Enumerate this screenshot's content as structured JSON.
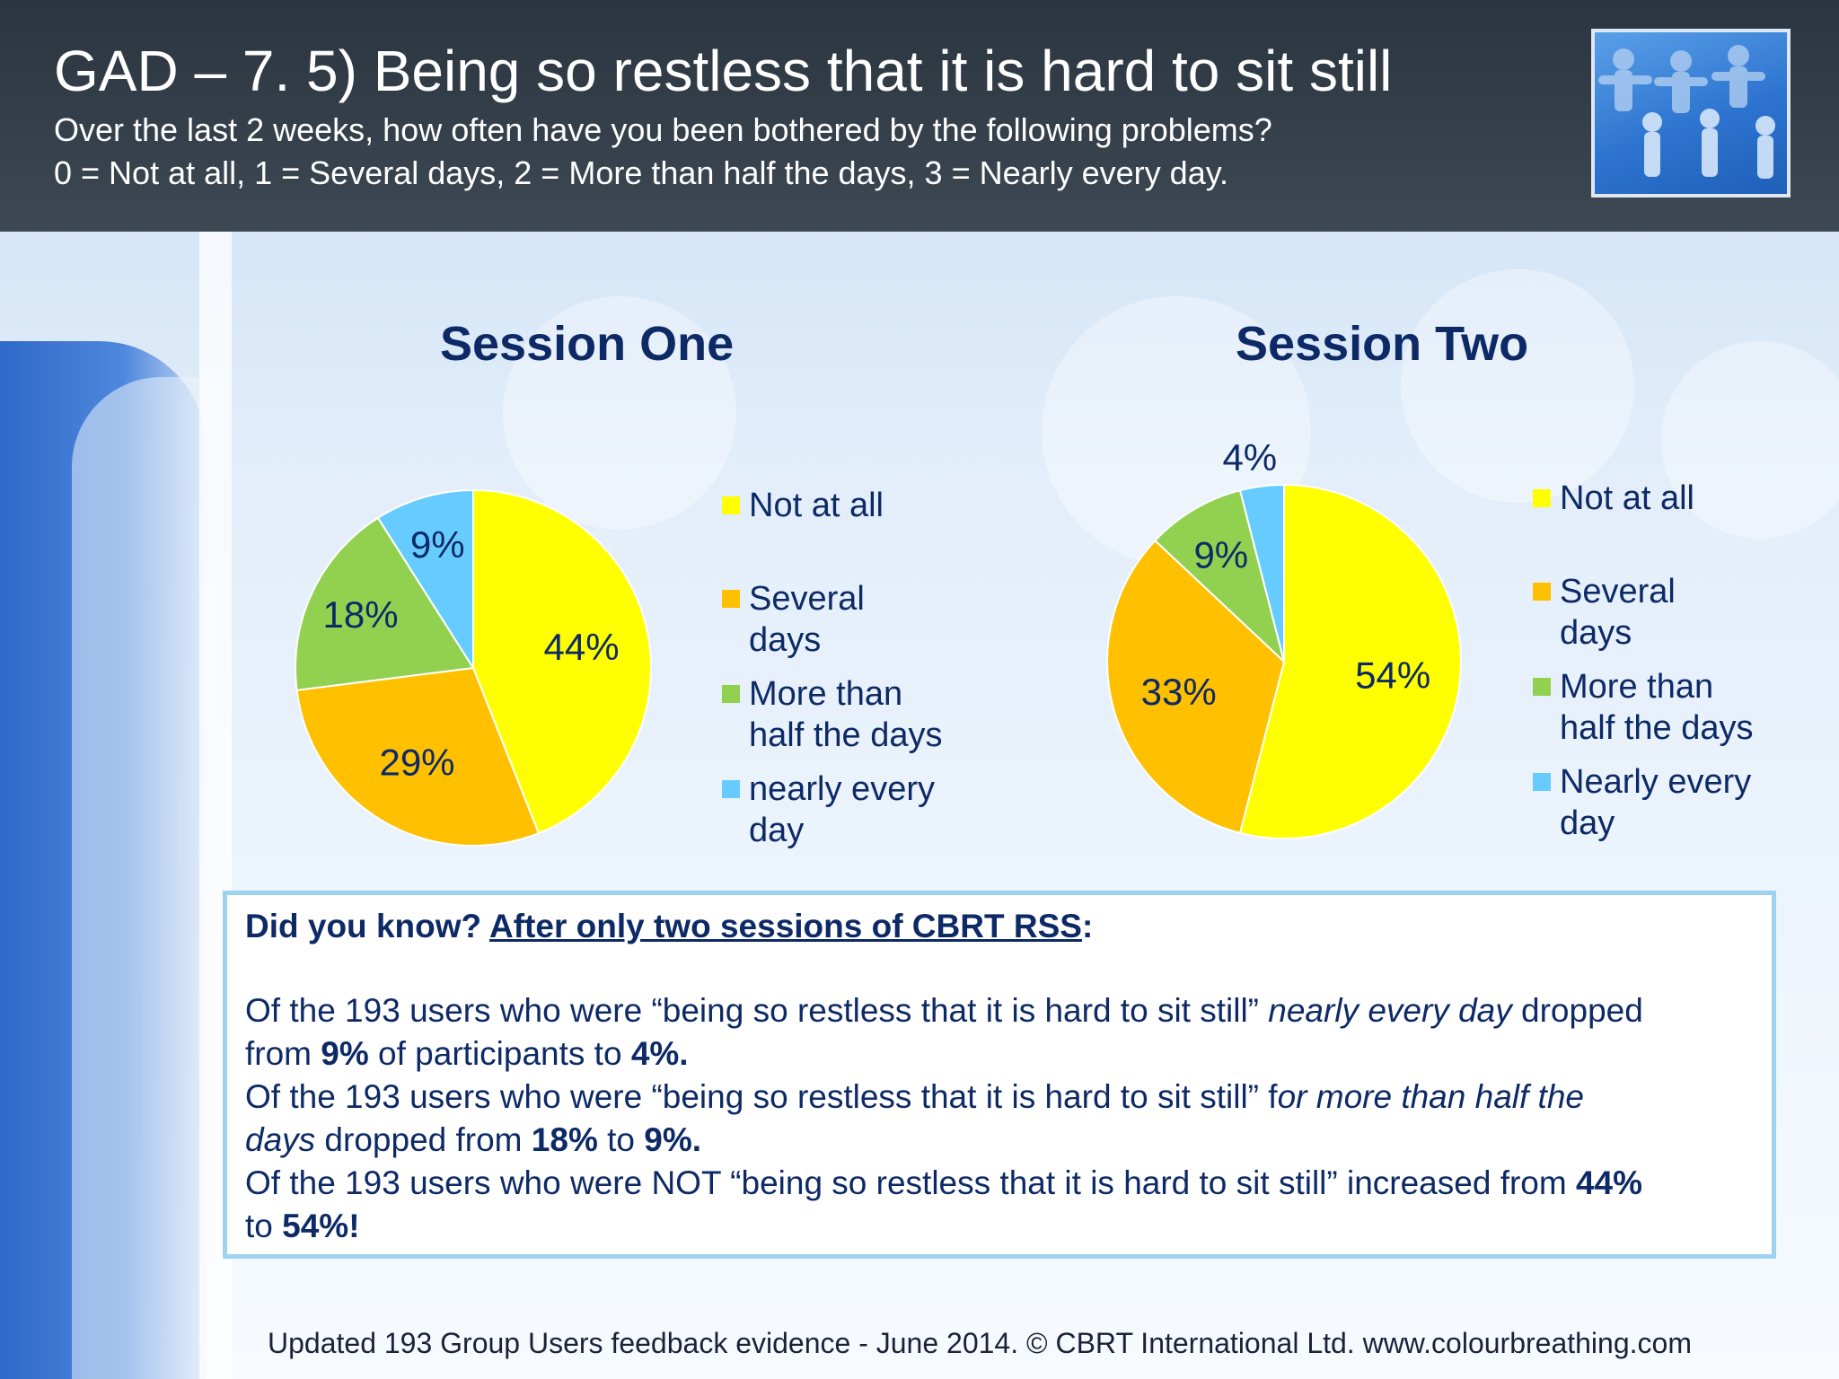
{
  "header": {
    "title": "GAD – 7.  5) Being so restless that it is hard to sit still",
    "subtitle_line1": "Over the last 2 weeks, how often have you been bothered by the following problems?",
    "subtitle_line2": "0 = Not at all, 1 = Several days, 2 = More than half the days, 3 = Nearly every day.",
    "logo_icon": "paper-chain-people-icon"
  },
  "colors": {
    "not_at_all": "#ffff00",
    "several_days": "#ffc000",
    "more_than_half": "#92d050",
    "nearly_every_day": "#66ccff",
    "text_dark_blue": "#0d2a66"
  },
  "chart_data": [
    {
      "type": "pie",
      "title": "Session One",
      "categories": [
        "Not at all",
        "Several days",
        "More than half the days",
        "nearly every day"
      ],
      "values": [
        44,
        29,
        18,
        9
      ],
      "labels": [
        "44%",
        "29%",
        "18%",
        "9%"
      ],
      "legend_position": "right"
    },
    {
      "type": "pie",
      "title": "Session Two",
      "categories": [
        "Not at all",
        "Several days",
        "More than half the days",
        "Nearly every day"
      ],
      "values": [
        54,
        33,
        9,
        4
      ],
      "labels": [
        "54%",
        "33%",
        "9%",
        "4%"
      ],
      "legend_position": "right"
    }
  ],
  "legend1": {
    "items": [
      {
        "line1": "Not at all",
        "line2": ""
      },
      {
        "line1": "Several",
        "line2": "days"
      },
      {
        "line1": "More than",
        "line2": "half the days"
      },
      {
        "line1": "nearly every",
        "line2": "day"
      }
    ]
  },
  "legend2": {
    "items": [
      {
        "line1": "Not at all",
        "line2": ""
      },
      {
        "line1": "Several",
        "line2": "days"
      },
      {
        "line1": "More than",
        "line2": "half the days"
      },
      {
        "line1": "Nearly every",
        "line2": "day"
      }
    ]
  },
  "infobox": {
    "heading_prefix": "Did you know? ",
    "heading_link": "After only two sessions of CBRT RSS",
    "heading_suffix": ":",
    "line1_a": "Of the 193 users who were “being so restless that it is hard to sit still” ",
    "line1_b": "nearly every day",
    "line1_c": " dropped",
    "line2_a": "from ",
    "line2_b": "9%",
    "line2_c": " of participants to ",
    "line2_d": "4%.",
    "line3_a": "Of the 193 users who were “being so restless that it is hard to sit still” f",
    "line3_b": "or more than half the",
    "line4_a": "days",
    "line4_b": " dropped from ",
    "line4_c": "18%",
    "line4_d": " to ",
    "line4_e": "9%.",
    "line5_a": "Of the 193 users who were NOT “being so restless that it is hard to sit still” increased from ",
    "line5_b": "44%",
    "line6_a": "to ",
    "line6_b": "54%!"
  },
  "footer": {
    "text": "Updated 193 Group Users feedback evidence - June 2014. © CBRT International Ltd. www.colourbreathing.com"
  }
}
